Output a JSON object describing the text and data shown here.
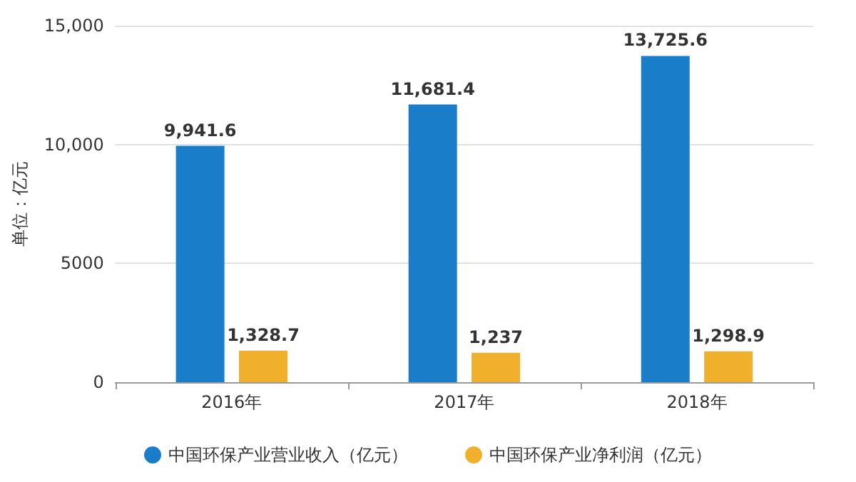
{
  "chart_data": {
    "type": "bar",
    "ylabel": "单位：亿元",
    "categories": [
      "2016年",
      "2017年",
      "2018年"
    ],
    "series": [
      {
        "name": "中国环保产业营业收入（亿元）",
        "color": "#1a7dc9",
        "values": [
          9941.6,
          11681.4,
          13725.6
        ],
        "value_labels": [
          "9,941.6",
          "11,681.4",
          "13,725.6"
        ]
      },
      {
        "name": "中国环保产业净利润（亿元）",
        "color": "#f0b02c",
        "values": [
          1328.7,
          1237,
          1298.9
        ],
        "value_labels": [
          "1,328.7",
          "1,237",
          "1,298.9"
        ]
      }
    ],
    "ylim": [
      0,
      15000
    ],
    "yticks": [
      0,
      5000,
      {
        "value": 10000,
        "label": "10,000"
      },
      {
        "value": 15000,
        "label": "15,000"
      }
    ],
    "grid": "y",
    "legend": "bottom"
  }
}
